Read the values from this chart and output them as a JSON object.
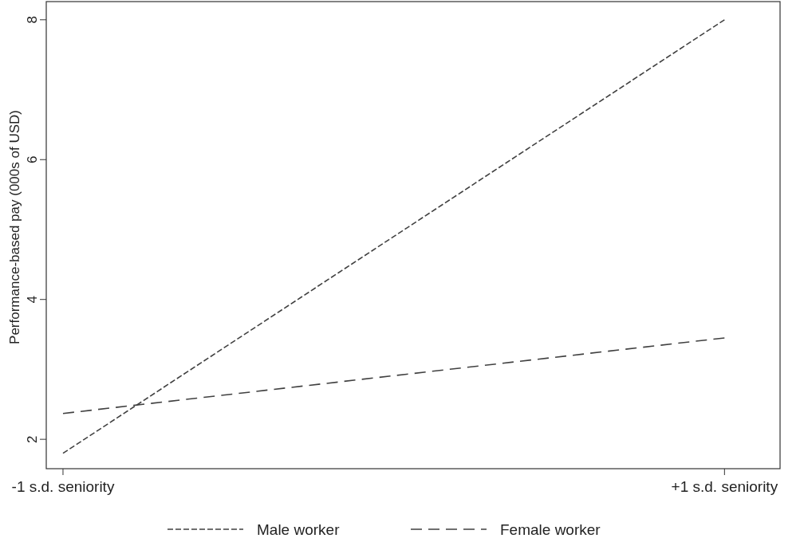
{
  "chart_data": {
    "type": "line",
    "ylabel": "Performance-based pay (000s of USD)",
    "categories": [
      "-1 s.d. seniority",
      "+1 s.d. seniority"
    ],
    "series": [
      {
        "name": "Male worker",
        "color": "#404040",
        "values": [
          1.8,
          8.0
        ],
        "line_style": "dashed"
      },
      {
        "name": "Female worker",
        "color": "#404040",
        "values": [
          2.37,
          3.45
        ],
        "line_style": "dashed"
      }
    ],
    "ylim": [
      1.58,
      8.26
    ],
    "yticks": [
      2,
      4,
      6,
      8
    ],
    "grid": false,
    "legend": "bottom",
    "marker": "none"
  }
}
